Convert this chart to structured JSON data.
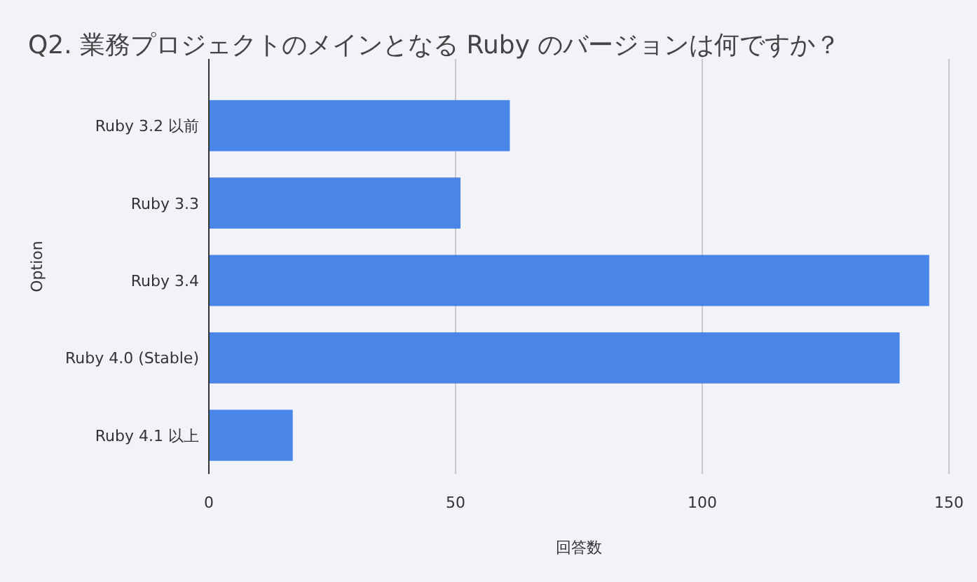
{
  "chart_data": {
    "type": "bar",
    "orientation": "horizontal",
    "title": "Q2. 業務プロジェクトのメインとなる Ruby のバージョンは何ですか？",
    "xlabel": "回答数",
    "ylabel": "Option",
    "categories": [
      "Ruby 3.2 以前",
      "Ruby 3.3",
      "Ruby 3.4",
      "Ruby 4.0 (Stable)",
      "Ruby 4.1 以上"
    ],
    "values": [
      61,
      51,
      146,
      140,
      17
    ],
    "color": "#4a86e8",
    "xlim": [
      0,
      150
    ],
    "xticks": [
      0,
      50,
      100,
      150
    ],
    "grid": "x"
  }
}
